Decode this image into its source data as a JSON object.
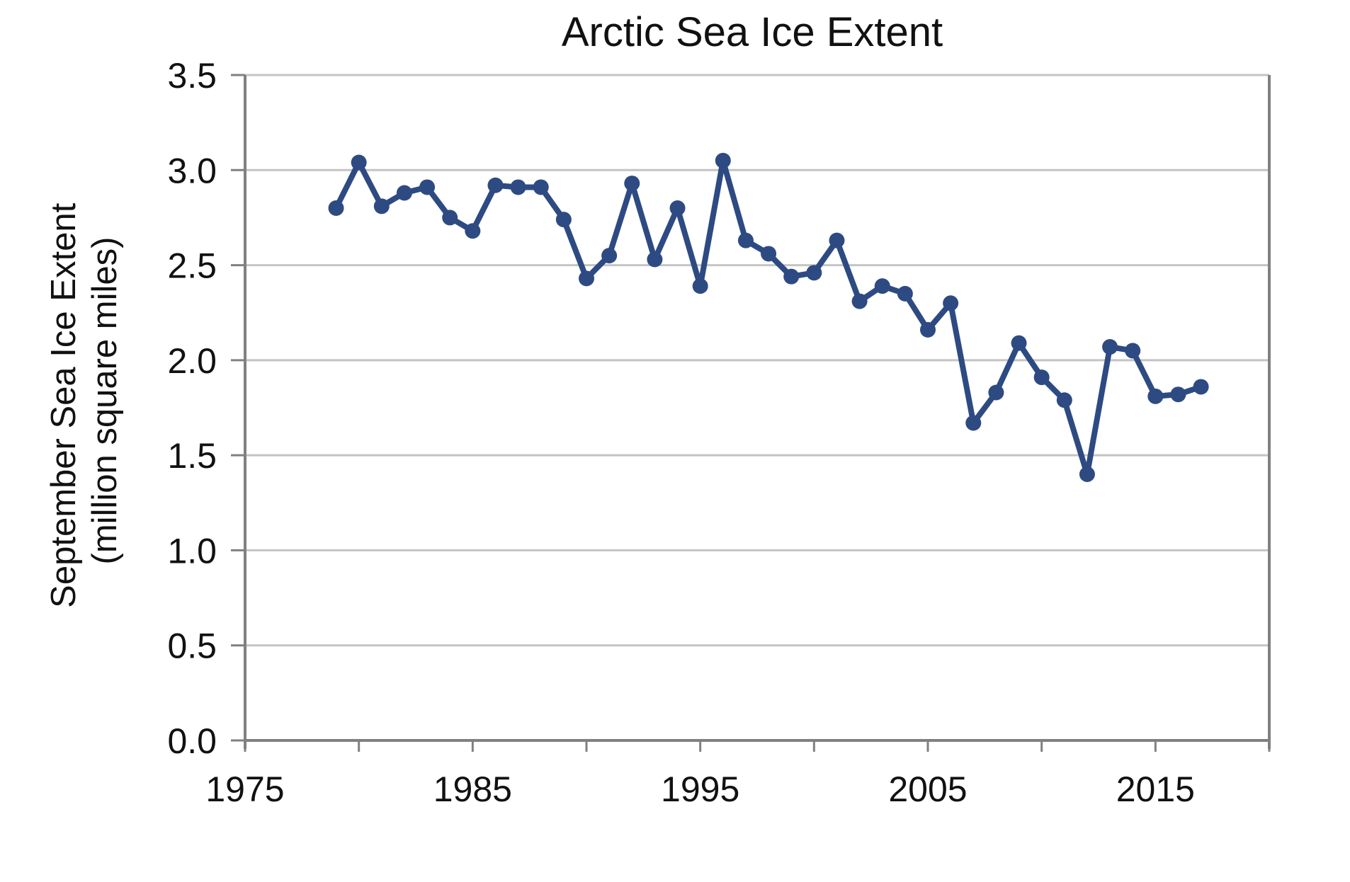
{
  "chart_data": {
    "type": "line",
    "title": "Arctic Sea Ice Extent",
    "ylabel_lines": [
      "September Sea Ice Extent",
      "(million square miles)"
    ],
    "xlabel": "",
    "xlim": [
      1975,
      2020
    ],
    "ylim": [
      0,
      3.5
    ],
    "x_ticks": [
      1975,
      1980,
      1985,
      1990,
      1995,
      2000,
      2005,
      2010,
      2015,
      2020
    ],
    "x_tick_labels": [
      "1975",
      "",
      "1985",
      "",
      "1995",
      "",
      "2005",
      "",
      "2015",
      ""
    ],
    "y_ticks": [
      0,
      0.5,
      1.0,
      1.5,
      2.0,
      2.5,
      3.0,
      3.5
    ],
    "y_tick_labels": [
      "0.0",
      "0.5",
      "1.0",
      "1.5",
      "2.0",
      "2.5",
      "3.0",
      "3.5"
    ],
    "grid": "horizontal",
    "legend": "none",
    "series_color": "#2e4a82",
    "series": [
      {
        "x": [
          1979,
          1980,
          1981,
          1982,
          1983,
          1984,
          1985,
          1986,
          1987,
          1988,
          1989,
          1990,
          1991,
          1992,
          1993,
          1994,
          1995,
          1996,
          1997,
          1998,
          1999,
          2000,
          2001,
          2002,
          2003,
          2004,
          2005,
          2006,
          2007,
          2008,
          2009,
          2010,
          2011,
          2012,
          2013,
          2014,
          2015,
          2016,
          2017
        ],
        "values": [
          2.8,
          3.04,
          2.81,
          2.88,
          2.91,
          2.75,
          2.68,
          2.92,
          2.91,
          2.91,
          2.74,
          2.43,
          2.55,
          2.93,
          2.53,
          2.8,
          2.39,
          3.05,
          2.63,
          2.56,
          2.44,
          2.46,
          2.63,
          2.31,
          2.39,
          2.35,
          2.16,
          2.3,
          1.67,
          1.83,
          2.09,
          1.91,
          1.79,
          1.4,
          2.07,
          2.05,
          1.81,
          1.82,
          1.86
        ]
      }
    ]
  }
}
